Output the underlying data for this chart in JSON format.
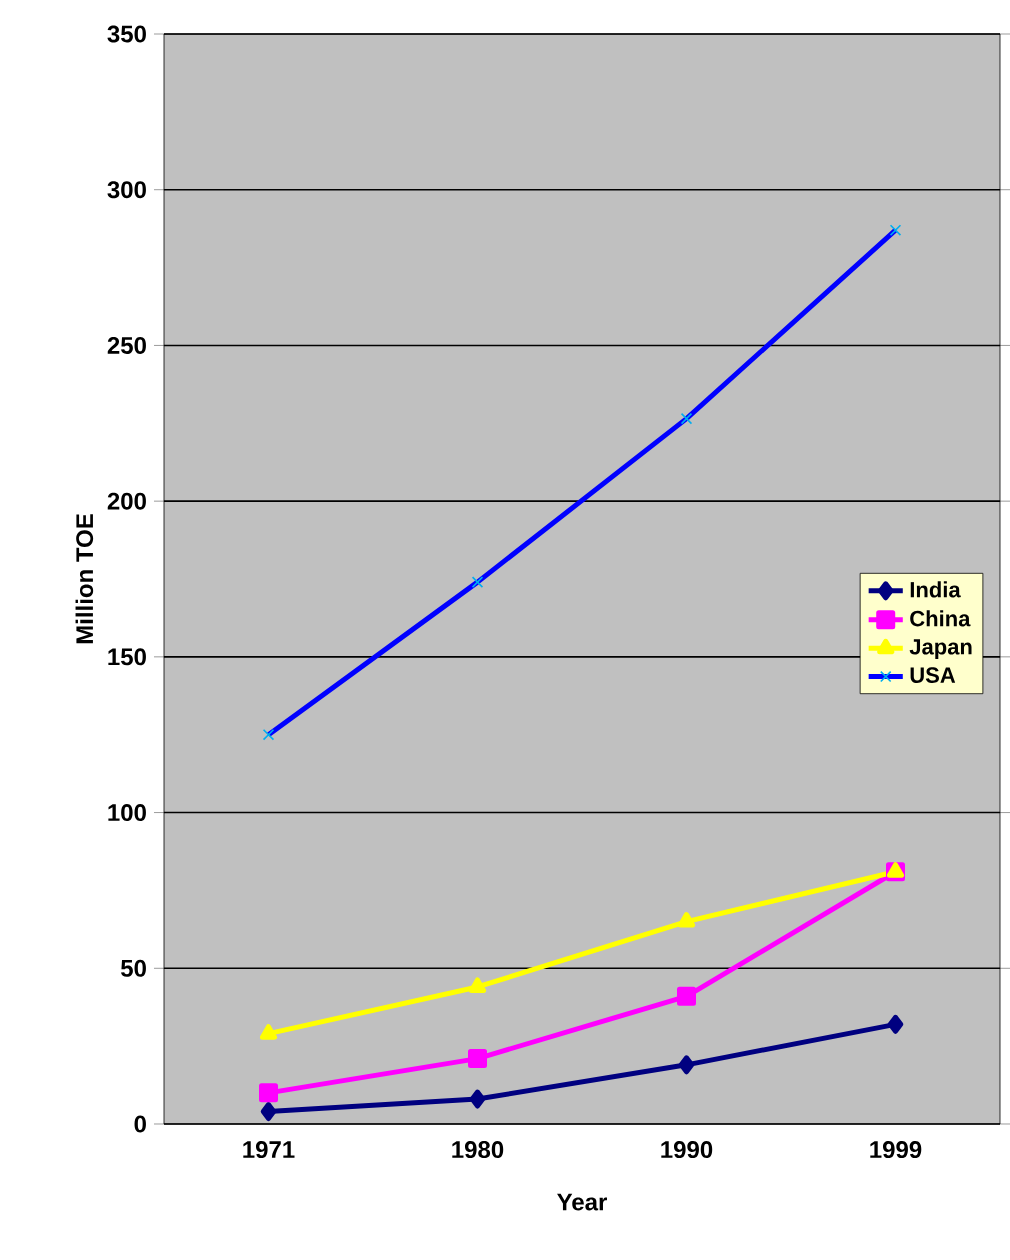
{
  "chart_data": {
    "type": "line",
    "xlabel": "Year",
    "ylabel": "Million TOE",
    "categories": [
      "1971",
      "1980",
      "1990",
      "1999"
    ],
    "series": [
      {
        "name": "India",
        "color": "#000080",
        "marker": "diamond",
        "values": [
          4,
          8,
          19,
          32
        ]
      },
      {
        "name": "China",
        "color": "#ff00ff",
        "marker": "square",
        "values": [
          10,
          21,
          41,
          81
        ]
      },
      {
        "name": "Japan",
        "color": "#ffff00",
        "marker": "triangle",
        "values": [
          29,
          44,
          65,
          81
        ]
      },
      {
        "name": "USA",
        "color": "#0000ff",
        "marker": "cross",
        "values": [
          125,
          174,
          226.5,
          287
        ]
      }
    ],
    "ylim": [
      0,
      350
    ],
    "yticks": [
      0,
      50,
      100,
      150,
      200,
      250,
      300,
      350
    ],
    "grid": "y",
    "legend": "right"
  }
}
